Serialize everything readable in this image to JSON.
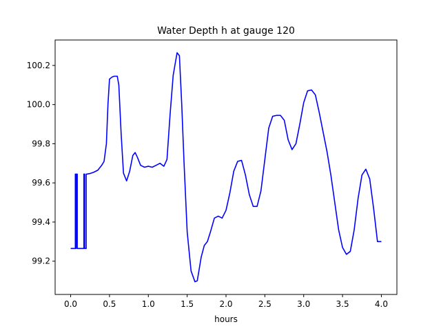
{
  "chart_data": {
    "type": "line",
    "title": "Water Depth h at gauge 120",
    "xlabel": "hours",
    "ylabel": "",
    "xlim": [
      -0.2,
      4.2
    ],
    "ylim": [
      99.03,
      100.33
    ],
    "grid": false,
    "xticks": [
      0.0,
      0.5,
      1.0,
      1.5,
      2.0,
      2.5,
      3.0,
      3.5,
      4.0
    ],
    "xtick_labels": [
      "0.0",
      "0.5",
      "1.0",
      "1.5",
      "2.0",
      "2.5",
      "3.0",
      "3.5",
      "4.0"
    ],
    "yticks": [
      99.2,
      99.4,
      99.6,
      99.8,
      100.0,
      100.2
    ],
    "ytick_labels": [
      "99.2",
      "99.4",
      "99.6",
      "99.8",
      "100.0",
      "100.2"
    ],
    "series": [
      {
        "color": "#0000ff",
        "points": [
          [
            0.0,
            99.265
          ],
          [
            0.06,
            99.265
          ],
          [
            0.06,
            99.645
          ],
          [
            0.07,
            99.645
          ],
          [
            0.07,
            99.265
          ],
          [
            0.08,
            99.645
          ],
          [
            0.085,
            99.645
          ],
          [
            0.085,
            99.265
          ],
          [
            0.17,
            99.265
          ],
          [
            0.17,
            99.645
          ],
          [
            0.18,
            99.645
          ],
          [
            0.18,
            99.265
          ],
          [
            0.2,
            99.265
          ],
          [
            0.2,
            99.645
          ],
          [
            0.21,
            99.645
          ],
          [
            0.21,
            99.645
          ],
          [
            0.25,
            99.648
          ],
          [
            0.3,
            99.655
          ],
          [
            0.35,
            99.665
          ],
          [
            0.4,
            99.69
          ],
          [
            0.43,
            99.71
          ],
          [
            0.46,
            99.8
          ],
          [
            0.48,
            100.0
          ],
          [
            0.5,
            100.13
          ],
          [
            0.53,
            100.14
          ],
          [
            0.56,
            100.145
          ],
          [
            0.6,
            100.145
          ],
          [
            0.62,
            100.1
          ],
          [
            0.65,
            99.85
          ],
          [
            0.68,
            99.65
          ],
          [
            0.72,
            99.61
          ],
          [
            0.76,
            99.66
          ],
          [
            0.8,
            99.74
          ],
          [
            0.83,
            99.755
          ],
          [
            0.86,
            99.73
          ],
          [
            0.9,
            99.69
          ],
          [
            0.95,
            99.68
          ],
          [
            1.0,
            99.685
          ],
          [
            1.05,
            99.68
          ],
          [
            1.1,
            99.69
          ],
          [
            1.15,
            99.7
          ],
          [
            1.2,
            99.685
          ],
          [
            1.24,
            99.72
          ],
          [
            1.28,
            99.95
          ],
          [
            1.32,
            100.15
          ],
          [
            1.37,
            100.265
          ],
          [
            1.4,
            100.25
          ],
          [
            1.43,
            100.0
          ],
          [
            1.46,
            99.7
          ],
          [
            1.5,
            99.35
          ],
          [
            1.55,
            99.15
          ],
          [
            1.6,
            99.095
          ],
          [
            1.63,
            99.1
          ],
          [
            1.68,
            99.22
          ],
          [
            1.72,
            99.28
          ],
          [
            1.76,
            99.3
          ],
          [
            1.8,
            99.35
          ],
          [
            1.85,
            99.42
          ],
          [
            1.9,
            99.43
          ],
          [
            1.95,
            99.42
          ],
          [
            2.0,
            99.46
          ],
          [
            2.05,
            99.55
          ],
          [
            2.1,
            99.66
          ],
          [
            2.15,
            99.71
          ],
          [
            2.2,
            99.715
          ],
          [
            2.25,
            99.64
          ],
          [
            2.3,
            99.54
          ],
          [
            2.35,
            99.48
          ],
          [
            2.4,
            99.48
          ],
          [
            2.45,
            99.56
          ],
          [
            2.5,
            99.72
          ],
          [
            2.55,
            99.88
          ],
          [
            2.6,
            99.94
          ],
          [
            2.65,
            99.945
          ],
          [
            2.7,
            99.945
          ],
          [
            2.75,
            99.92
          ],
          [
            2.8,
            99.82
          ],
          [
            2.85,
            99.77
          ],
          [
            2.9,
            99.8
          ],
          [
            2.95,
            99.9
          ],
          [
            3.0,
            100.01
          ],
          [
            3.05,
            100.07
          ],
          [
            3.1,
            100.075
          ],
          [
            3.15,
            100.05
          ],
          [
            3.2,
            99.96
          ],
          [
            3.25,
            99.86
          ],
          [
            3.3,
            99.76
          ],
          [
            3.35,
            99.64
          ],
          [
            3.4,
            99.5
          ],
          [
            3.45,
            99.36
          ],
          [
            3.5,
            99.27
          ],
          [
            3.55,
            99.235
          ],
          [
            3.6,
            99.25
          ],
          [
            3.65,
            99.36
          ],
          [
            3.7,
            99.52
          ],
          [
            3.75,
            99.64
          ],
          [
            3.8,
            99.67
          ],
          [
            3.85,
            99.62
          ],
          [
            3.9,
            99.47
          ],
          [
            3.95,
            99.3
          ],
          [
            4.0,
            99.3
          ]
        ]
      }
    ]
  }
}
